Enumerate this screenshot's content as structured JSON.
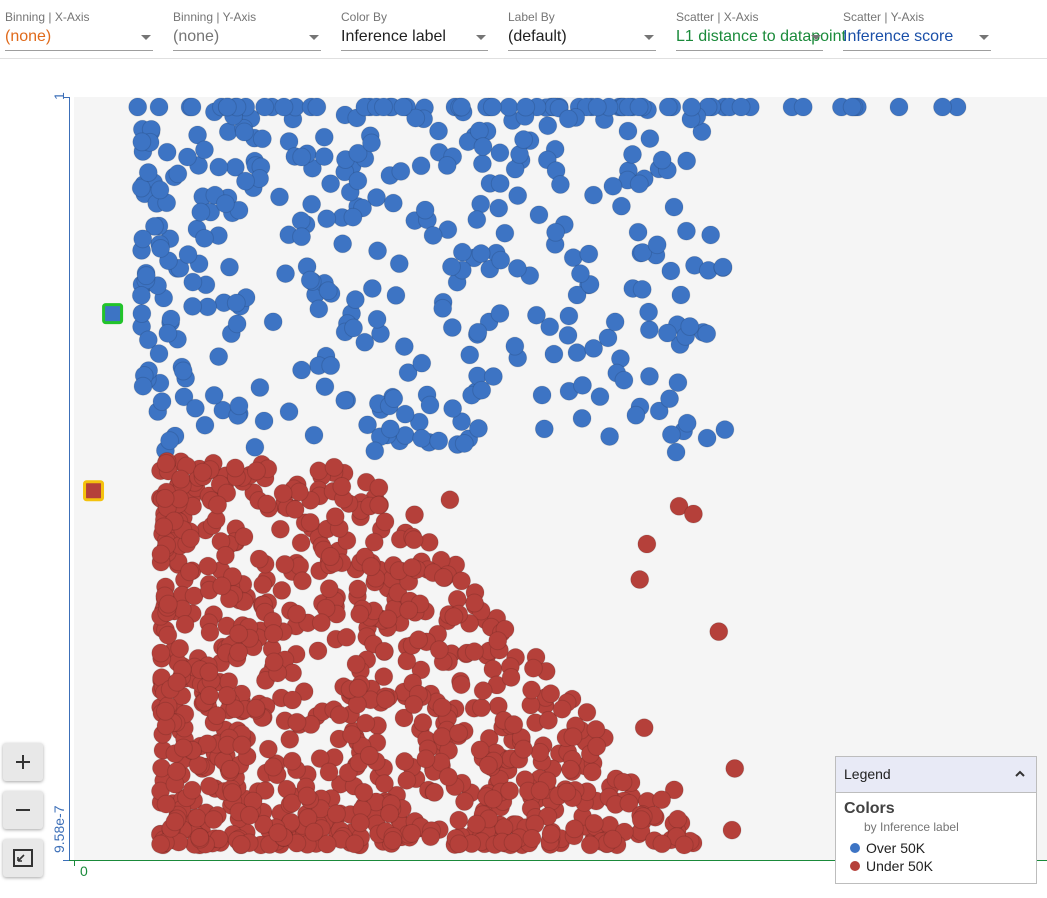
{
  "toolbar": {
    "binning_x": {
      "label": "Binning | X-Axis",
      "value": "(none)"
    },
    "binning_y": {
      "label": "Binning | Y-Axis",
      "value": "(none)"
    },
    "color_by": {
      "label": "Color By",
      "value": "Inference label"
    },
    "label_by": {
      "label": "Label By",
      "value": "(default)"
    },
    "scatter_x": {
      "label": "Scatter | X-Axis",
      "value": "L1 distance to datapoint"
    },
    "scatter_y": {
      "label": "Scatter | Y-Axis",
      "value": "Inference score"
    }
  },
  "axes": {
    "y_max_label": "1",
    "y_min_label": "9.58e-7",
    "x_min_label": "0"
  },
  "legend": {
    "title": "Legend",
    "colors_heading": "Colors",
    "colors_sub": "by Inference label",
    "items": [
      {
        "label": "Over 50K",
        "color": "#3d74c4"
      },
      {
        "label": "Under 50K",
        "color": "#b5403a"
      }
    ]
  },
  "colors": {
    "over": "#3d74c4",
    "under": "#b5403a",
    "binning_x_value": "#e06a1b",
    "scatter_x_value": "#1a8a3a",
    "scatter_y_value": "#1a4fa8",
    "y_axis": "#3c6fb8",
    "x_axis": "#1a8a3a",
    "highlight_blue": "#22c42a",
    "highlight_red": "#f4c20d"
  },
  "chart_data": {
    "type": "scatter",
    "ylim": [
      9.58e-07,
      1
    ],
    "grid": false,
    "legend_position": "bottom-right",
    "series": [
      {
        "name": "Over 50K",
        "color_key": "over",
        "band": [
          0.53,
          1.0
        ],
        "count": 430
      },
      {
        "name": "Under 50K",
        "color_key": "under",
        "band": [
          0.0,
          0.52
        ],
        "count": 900
      }
    ],
    "highlighted": [
      {
        "series": "Over 50K",
        "x": 0.03,
        "y": 0.72
      },
      {
        "series": "Under 50K",
        "x": 0.01,
        "y": 0.48
      }
    ]
  }
}
